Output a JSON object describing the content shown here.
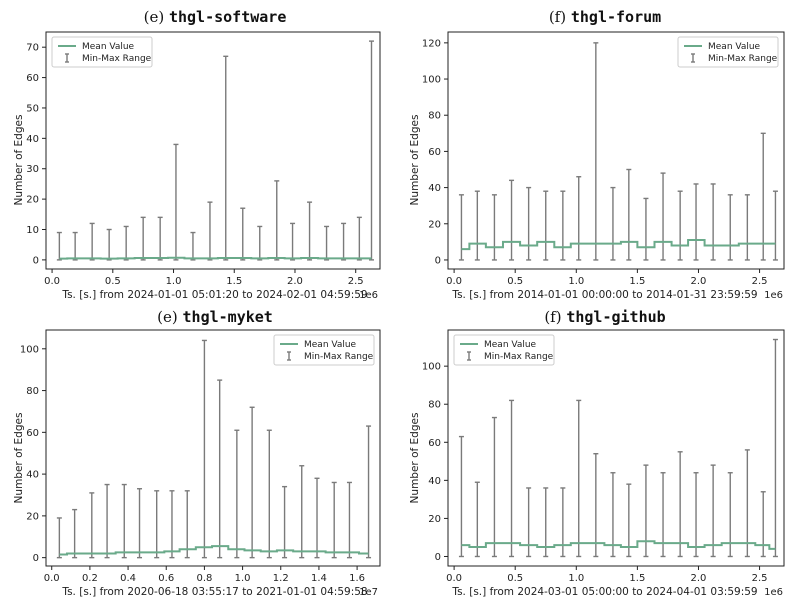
{
  "colors": {
    "mean": "#6aaa8a",
    "range": "#7a7a7a",
    "axis": "#222222",
    "legend_border": "#cccccc"
  },
  "legend": {
    "mean": "Mean Value",
    "range": "Min-Max Range"
  },
  "ylabel": "Number of Edges",
  "chart_data": [
    {
      "type": "line",
      "title_prefix": "(e) ",
      "title_name": "thgl-software",
      "xlabel": "Ts. [s.] from 2024-01-01 05:01:20 to 2024-02-01 04:59:59",
      "offset_text": "1e6",
      "xlim": [
        -0.05,
        2.7
      ],
      "ylim": [
        -3,
        75
      ],
      "xticks": [
        0.0,
        0.5,
        1.0,
        1.5,
        2.0,
        2.5
      ],
      "xticklabels": [
        "0.0",
        "0.5",
        "1.0",
        "1.5",
        "2.0",
        "2.5"
      ],
      "yticks": [
        0,
        10,
        20,
        30,
        40,
        50,
        60,
        70
      ],
      "yticklabels": [
        "0",
        "10",
        "20",
        "30",
        "40",
        "50",
        "60",
        "70"
      ],
      "legend_position": "upper-left",
      "x": [
        0.06,
        0.19,
        0.33,
        0.47,
        0.61,
        0.75,
        0.89,
        1.02,
        1.16,
        1.3,
        1.43,
        1.57,
        1.71,
        1.85,
        1.98,
        2.12,
        2.26,
        2.4,
        2.53,
        2.63
      ],
      "max": [
        9,
        9,
        12,
        10,
        11,
        14,
        14,
        38,
        9,
        19,
        67,
        17,
        11,
        26,
        12,
        19,
        11,
        12,
        14,
        72
      ],
      "min": [
        0,
        0,
        0,
        0,
        0,
        0,
        0,
        0,
        0,
        0,
        0,
        0,
        0,
        0,
        0,
        0,
        0,
        0,
        0,
        0
      ],
      "mean": [
        0.4,
        0.5,
        0.5,
        0.4,
        0.5,
        0.6,
        0.6,
        0.7,
        0.5,
        0.5,
        0.6,
        0.6,
        0.5,
        0.6,
        0.5,
        0.6,
        0.5,
        0.5,
        0.5,
        0.5
      ]
    },
    {
      "type": "line",
      "title_prefix": "(f) ",
      "title_name": "thgl-forum",
      "xlabel": "Ts. [s.] from 2014-01-01 00:00:00 to 2014-01-31 23:59:59",
      "offset_text": "1e6",
      "xlim": [
        -0.05,
        2.7
      ],
      "ylim": [
        -5,
        126
      ],
      "xticks": [
        0.0,
        0.5,
        1.0,
        1.5,
        2.0,
        2.5
      ],
      "xticklabels": [
        "0.0",
        "0.5",
        "1.0",
        "1.5",
        "2.0",
        "2.5"
      ],
      "yticks": [
        0,
        20,
        40,
        60,
        80,
        100,
        120
      ],
      "yticklabels": [
        "0",
        "20",
        "40",
        "60",
        "80",
        "100",
        "120"
      ],
      "legend_position": "upper-right",
      "x": [
        0.06,
        0.19,
        0.33,
        0.47,
        0.61,
        0.75,
        0.89,
        1.02,
        1.16,
        1.3,
        1.43,
        1.57,
        1.71,
        1.85,
        1.98,
        2.12,
        2.26,
        2.4,
        2.53,
        2.63
      ],
      "max": [
        36,
        38,
        36,
        44,
        40,
        38,
        38,
        46,
        120,
        40,
        50,
        34,
        48,
        38,
        42,
        42,
        36,
        36,
        70,
        38
      ],
      "min": [
        0,
        0,
        0,
        0,
        0,
        0,
        0,
        0,
        0,
        0,
        0,
        0,
        0,
        0,
        0,
        0,
        0,
        0,
        0,
        0
      ],
      "mean": [
        6,
        9,
        7,
        10,
        8,
        10,
        7,
        9,
        9,
        9,
        10,
        7,
        10,
        8,
        11,
        8,
        8,
        9,
        9,
        9
      ]
    },
    {
      "type": "line",
      "title_prefix": "(e) ",
      "title_name": "thgl-myket",
      "xlabel": "Ts. [s.] from 2020-06-18 03:55:17 to 2021-01-01 04:59:58",
      "offset_text": "1e7",
      "xlim": [
        -0.03,
        1.72
      ],
      "ylim": [
        -4,
        109
      ],
      "xticks": [
        0.0,
        0.2,
        0.4,
        0.6,
        0.8,
        1.0,
        1.2,
        1.4,
        1.6
      ],
      "xticklabels": [
        "0.0",
        "0.2",
        "0.4",
        "0.6",
        "0.8",
        "1.0",
        "1.2",
        "1.4",
        "1.6"
      ],
      "yticks": [
        0,
        20,
        40,
        60,
        80,
        100
      ],
      "yticklabels": [
        "0",
        "20",
        "40",
        "60",
        "80",
        "100"
      ],
      "legend_position": "upper-right",
      "x": [
        0.04,
        0.12,
        0.21,
        0.29,
        0.38,
        0.46,
        0.55,
        0.63,
        0.71,
        0.8,
        0.88,
        0.97,
        1.05,
        1.14,
        1.22,
        1.31,
        1.39,
        1.48,
        1.56,
        1.66
      ],
      "max": [
        19,
        23,
        31,
        35,
        35,
        33,
        32,
        32,
        32,
        104,
        85,
        61,
        72,
        61,
        34,
        44,
        38,
        36,
        36,
        63
      ],
      "min": [
        0,
        0,
        0,
        0,
        0,
        0,
        0,
        0,
        0,
        0,
        0,
        0,
        0,
        0,
        0,
        0,
        0,
        0,
        0,
        0
      ],
      "mean": [
        1.5,
        2,
        2,
        2,
        2.5,
        2.5,
        2.5,
        3,
        4,
        5,
        5.5,
        4,
        3.5,
        3,
        3.5,
        3,
        3,
        2.5,
        2.5,
        2
      ]
    },
    {
      "type": "line",
      "title_prefix": "(f) ",
      "title_name": "thgl-github",
      "xlabel": "Ts. [s.] from 2024-03-01 05:00:00 to 2024-04-01 03:59:59",
      "offset_text": "1e6",
      "xlim": [
        -0.05,
        2.7
      ],
      "ylim": [
        -5,
        119
      ],
      "xticks": [
        0.0,
        0.5,
        1.0,
        1.5,
        2.0,
        2.5
      ],
      "xticklabels": [
        "0.0",
        "0.5",
        "1.0",
        "1.5",
        "2.0",
        "2.5"
      ],
      "yticks": [
        0,
        20,
        40,
        60,
        80,
        100
      ],
      "yticklabels": [
        "0",
        "20",
        "40",
        "60",
        "80",
        "100"
      ],
      "legend_position": "upper-left",
      "x": [
        0.06,
        0.19,
        0.33,
        0.47,
        0.61,
        0.75,
        0.89,
        1.02,
        1.16,
        1.3,
        1.43,
        1.57,
        1.71,
        1.85,
        1.98,
        2.12,
        2.26,
        2.4,
        2.53,
        2.63
      ],
      "max": [
        63,
        39,
        73,
        82,
        36,
        36,
        36,
        82,
        54,
        44,
        38,
        48,
        44,
        55,
        44,
        48,
        44,
        56,
        34,
        114
      ],
      "min": [
        0,
        0,
        0,
        0,
        0,
        0,
        0,
        0,
        0,
        0,
        0,
        0,
        0,
        0,
        0,
        0,
        0,
        0,
        0,
        0
      ],
      "mean": [
        6,
        5,
        7,
        7,
        6,
        5,
        6,
        7,
        7,
        6,
        5,
        8,
        7,
        7,
        5,
        6,
        7,
        7,
        6,
        4
      ]
    }
  ]
}
